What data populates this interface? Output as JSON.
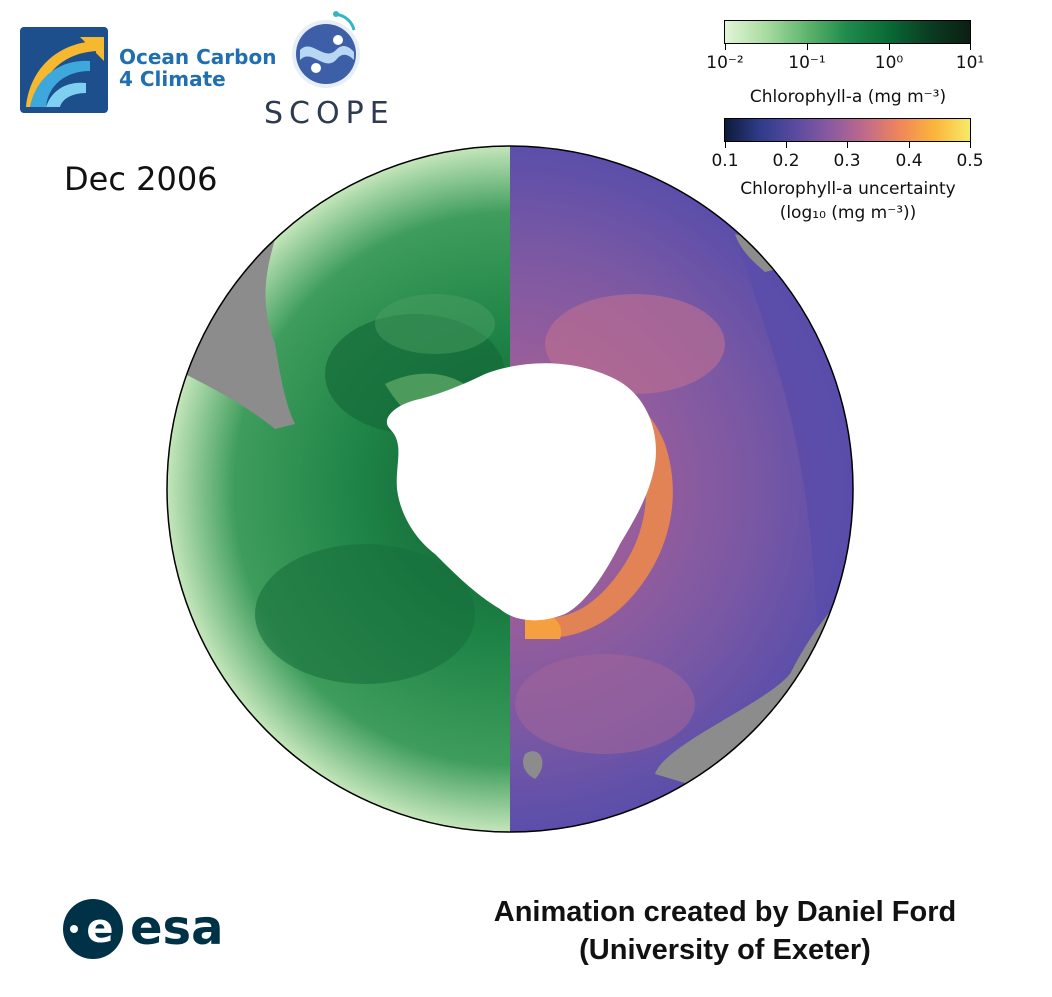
{
  "logos": {
    "oc4c": {
      "line1": "Ocean Carbon",
      "line2": "4 Climate"
    },
    "scope": {
      "text": "SCOPE"
    },
    "esa": {
      "text": "esa"
    }
  },
  "date": "Dec 2006",
  "colorbars": {
    "chlorophyll": {
      "title": "Chlorophyll-a (mg m⁻³)",
      "scale": "log",
      "ticks": [
        "10⁻²",
        "10⁻¹",
        "10⁰",
        "10¹"
      ]
    },
    "uncertainty": {
      "title_line1": "Chlorophyll-a uncertainty",
      "title_line2": "(log₁₀ (mg m⁻³))",
      "ticks": [
        "0.1",
        "0.2",
        "0.3",
        "0.4",
        "0.5"
      ]
    }
  },
  "colors": {
    "land": "#8c8c8c",
    "antarctica": "#ffffff",
    "chl_base": "#1e8447",
    "unc_base": "#6a58a8",
    "unc_high": "#f08a4a"
  },
  "credit": {
    "line1": "Animation created by Daniel Ford",
    "line2": "(University of Exeter)"
  }
}
